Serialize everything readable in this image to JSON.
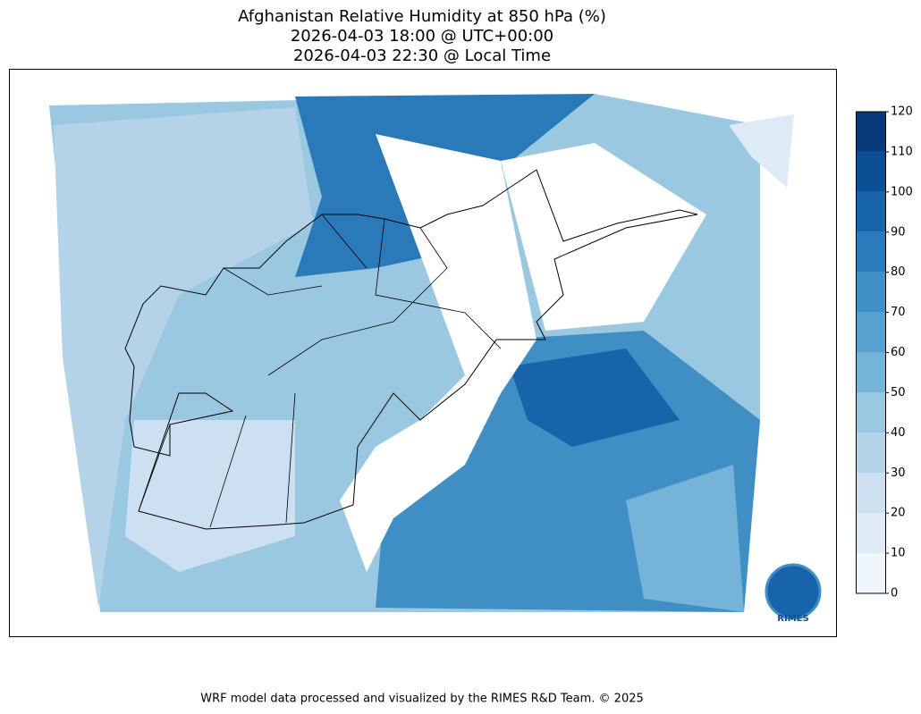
{
  "title": [
    "Afghanistan Relative Humidity at 850 hPa (%)",
    "2026-04-03 18:00 @ UTC+00:00",
    "2026-04-03 22:30 @ Local Time"
  ],
  "colorbar": {
    "lim": [
      0,
      120
    ],
    "ticks": [
      0,
      10,
      20,
      30,
      40,
      50,
      60,
      70,
      80,
      90,
      100,
      110,
      120
    ],
    "colors": [
      "#eff6fc",
      "#deebf7",
      "#cde0f1",
      "#b4d3e9",
      "#9ac8e0",
      "#75b4d8",
      "#58a1cf",
      "#3f8fc5",
      "#2a7aba",
      "#1764ab",
      "#0b4f95",
      "#083979"
    ]
  },
  "logo": "RIMES",
  "footer": "WRF model data processed and visualized by the RIMES R&D Team. © 2025"
}
